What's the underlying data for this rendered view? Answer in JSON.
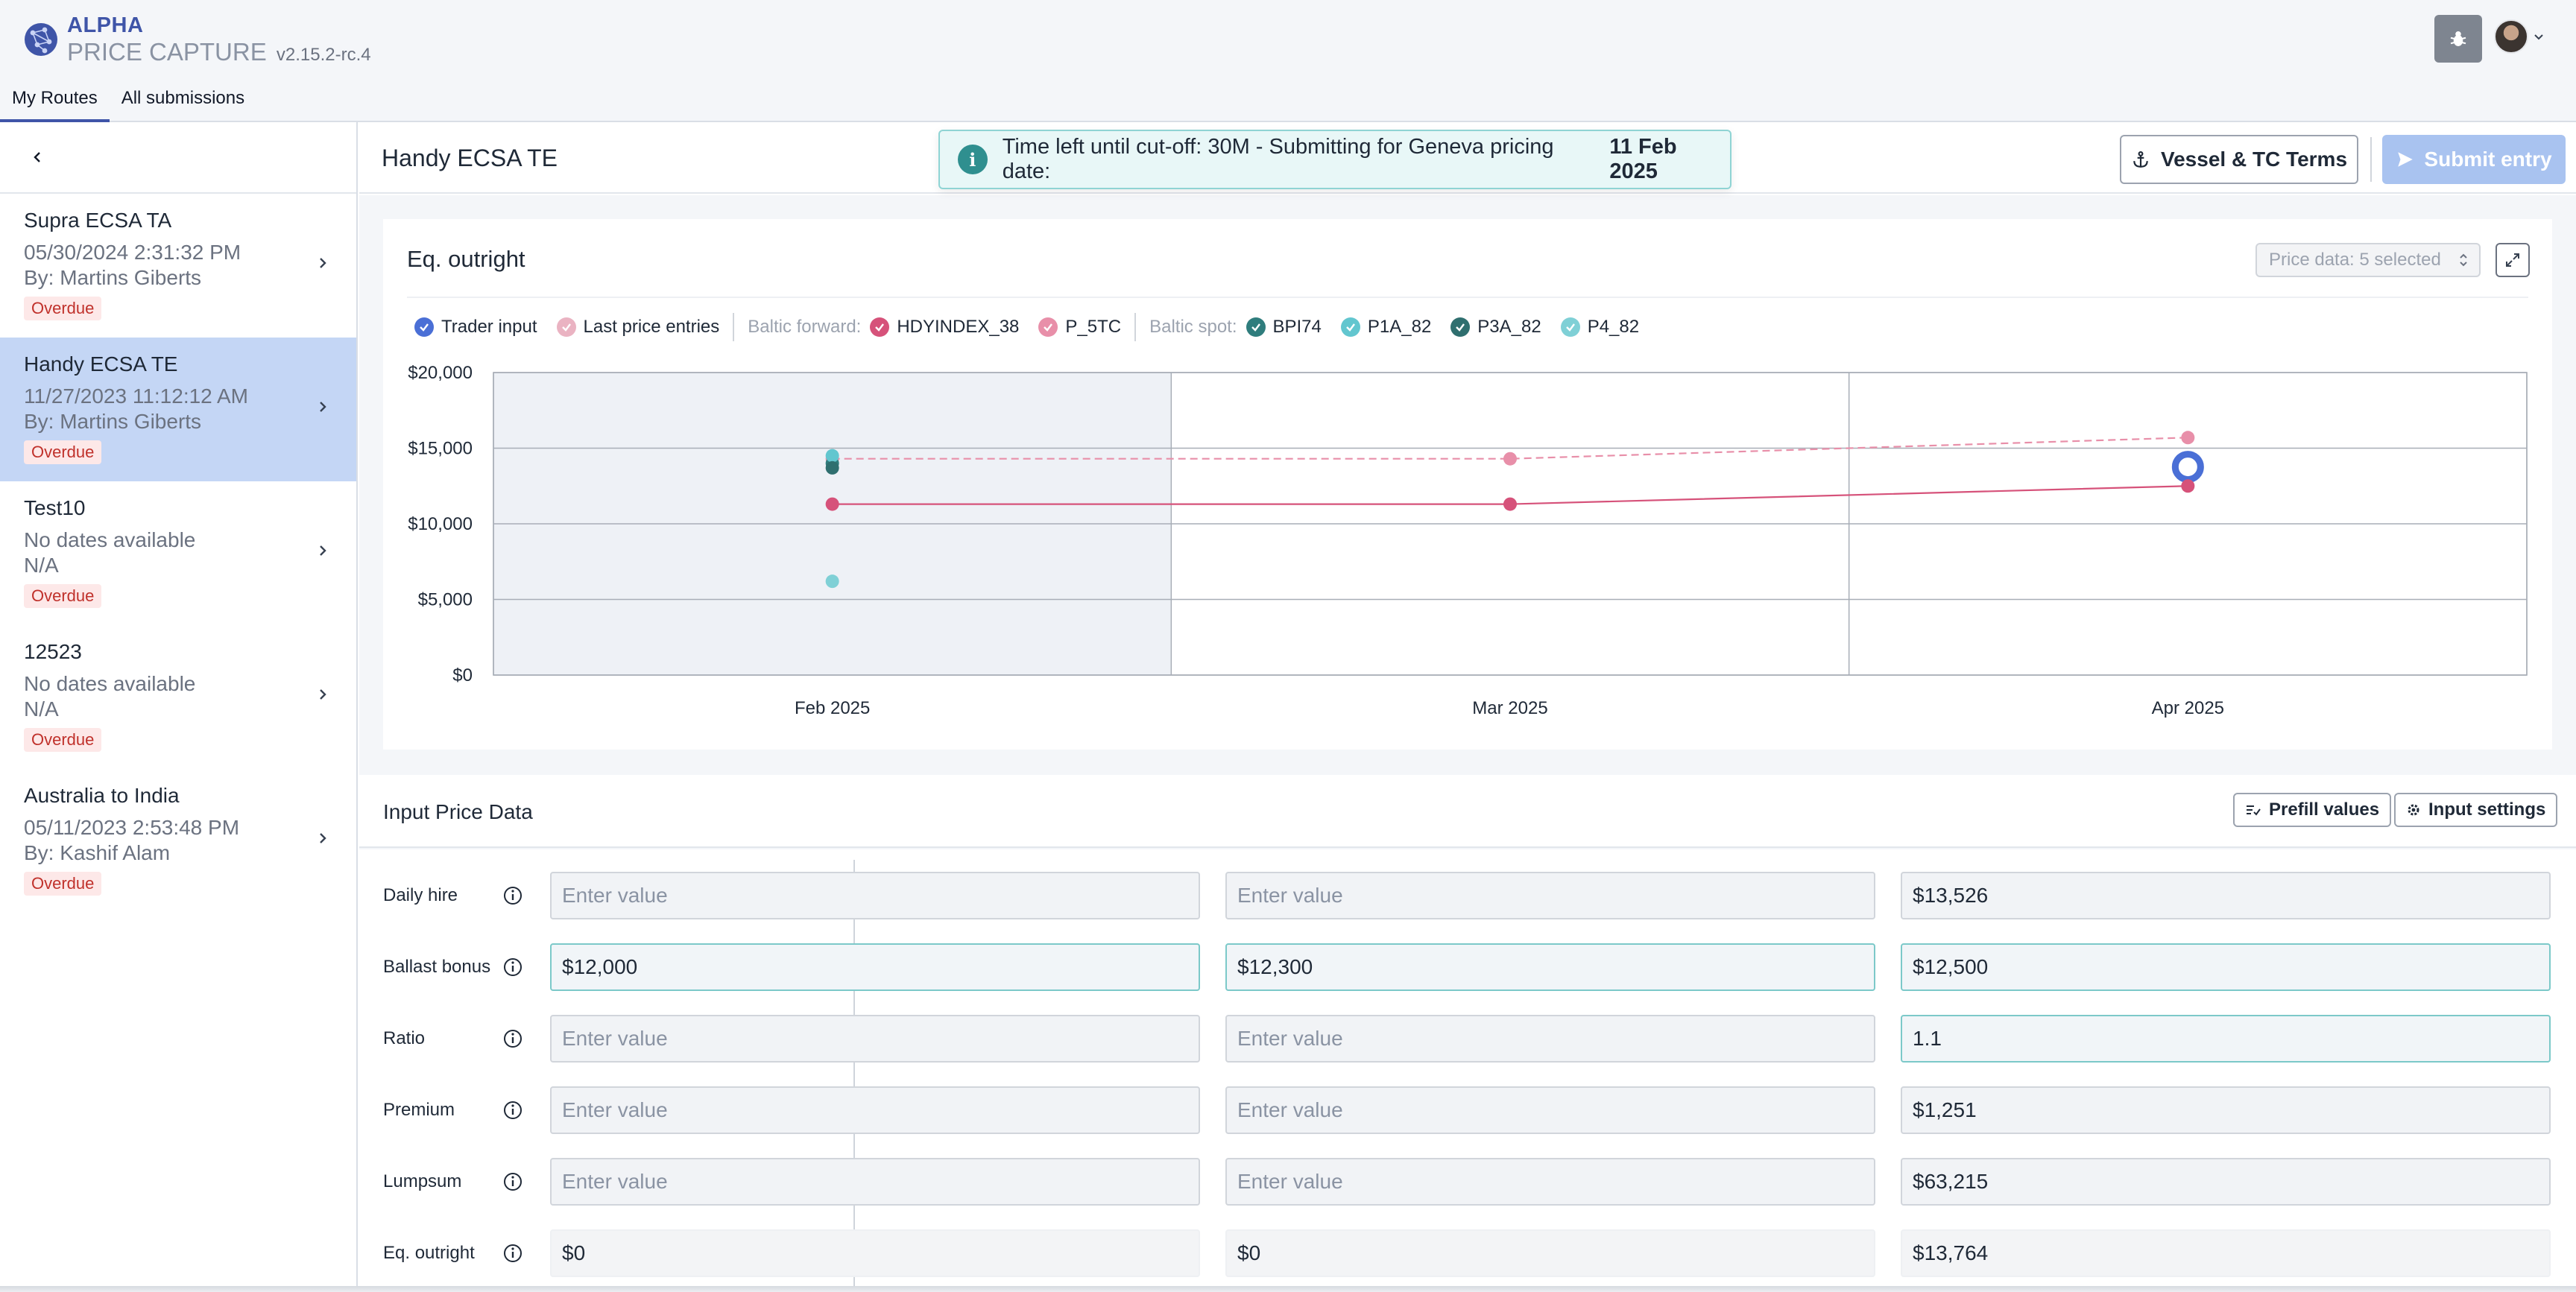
{
  "app": {
    "brand_top": "ALPHA",
    "brand_bottom": "PRICE CAPTURE",
    "version": "v2.15.2-rc.4"
  },
  "tabs": [
    {
      "label": "My Routes",
      "active": true
    },
    {
      "label": "All submissions",
      "active": false
    }
  ],
  "sidebar": {
    "routes": [
      {
        "name": "Supra ECSA TA",
        "date": "05/30/2024 2:31:32 PM",
        "by": "By: Martins Giberts",
        "status": "Overdue",
        "selected": false
      },
      {
        "name": "Handy ECSA TE",
        "date": "11/27/2023 11:12:12 AM",
        "by": "By: Martins Giberts",
        "status": "Overdue",
        "selected": true
      },
      {
        "name": "Test10",
        "date": "No dates available",
        "by": "N/A",
        "status": "Overdue",
        "selected": false
      },
      {
        "name": "12523",
        "date": "No dates available",
        "by": "N/A",
        "status": "Overdue",
        "selected": false
      },
      {
        "name": "Australia to India",
        "date": "05/11/2023 2:53:48 PM",
        "by": "By: Kashif Alam",
        "status": "Overdue",
        "selected": false
      }
    ]
  },
  "header": {
    "title": "Handy ECSA TE",
    "toast_text": "Time left until cut-off: 30M - Submitting for Geneva pricing date:",
    "toast_date": "11 Feb 2025",
    "vessel_button": "Vessel & TC Terms",
    "submit_button": "Submit entry"
  },
  "chart_card": {
    "title": "Eq. outright",
    "price_select": "Price data: 5 selected",
    "legend": {
      "trader_input": "Trader input",
      "last_price": "Last price entries",
      "forward_group": "Baltic forward:",
      "forward_items": [
        "HDYINDEX_38",
        "P_5TC"
      ],
      "spot_group": "Baltic spot:",
      "spot_items": [
        "BPI74",
        "P1A_82",
        "P3A_82",
        "P4_82"
      ]
    }
  },
  "chart_data": {
    "type": "line",
    "categories": [
      "Feb 2025",
      "Mar 2025",
      "Apr 2025"
    ],
    "y_ticks": [
      "$0",
      "$5,000",
      "$10,000",
      "$15,000",
      "$20,000"
    ],
    "ylim": [
      0,
      20000
    ],
    "shaded_category": "Feb 2025",
    "grid": true,
    "series": [
      {
        "name": "Trader input",
        "color": "#4a6fd6",
        "style": "ring",
        "values": [
          null,
          null,
          13764
        ]
      },
      {
        "name": "HDYINDEX_38",
        "color": "#d6527a",
        "style": "solid",
        "values": [
          11300,
          11300,
          12500
        ]
      },
      {
        "name": "P_5TC",
        "color": "#e88fa9",
        "style": "dashed",
        "values": [
          14300,
          14300,
          15700
        ]
      },
      {
        "name": "BPI74",
        "color": "#2f7d7d",
        "style": "point",
        "values": [
          14000,
          null,
          null
        ]
      },
      {
        "name": "P1A_82",
        "color": "#62c6cf",
        "style": "point",
        "values": [
          14500,
          null,
          null
        ]
      },
      {
        "name": "P3A_82",
        "color": "#2f6f6f",
        "style": "point",
        "values": [
          13700,
          null,
          null
        ]
      },
      {
        "name": "P4_82",
        "color": "#7fd0d6",
        "style": "point",
        "values": [
          6200,
          null,
          null
        ]
      }
    ]
  },
  "input_section": {
    "title": "Input Price Data",
    "prefill_button": "Prefill values",
    "settings_button": "Input settings",
    "placeholder": "Enter value",
    "rows": [
      {
        "label": "Daily hire",
        "values": [
          "",
          "",
          "$13,526"
        ],
        "highlight": [
          false,
          false,
          false
        ],
        "readonly": false
      },
      {
        "label": "Ballast bonus",
        "values": [
          "$12,000",
          "$12,300",
          "$12,500"
        ],
        "highlight": [
          true,
          true,
          true
        ],
        "readonly": false
      },
      {
        "label": "Ratio",
        "values": [
          "",
          "",
          "1.1"
        ],
        "highlight": [
          false,
          false,
          true
        ],
        "readonly": false
      },
      {
        "label": "Premium",
        "values": [
          "",
          "",
          "$1,251"
        ],
        "highlight": [
          false,
          false,
          false
        ],
        "readonly": false
      },
      {
        "label": "Lumpsum",
        "values": [
          "",
          "",
          "$63,215"
        ],
        "highlight": [
          false,
          false,
          false
        ],
        "readonly": false
      },
      {
        "label": "Eq. outright",
        "values": [
          "$0",
          "$0",
          "$13,764"
        ],
        "highlight": [
          false,
          false,
          false
        ],
        "readonly": true
      }
    ]
  },
  "colors": {
    "accent": "#3f55a8",
    "selected_row": "#c4d6f5",
    "overdue": "#c0312b",
    "trader_input": "#4a6fd6",
    "last_price": "#e8a3b5",
    "toast_border": "#8fd4d4"
  }
}
